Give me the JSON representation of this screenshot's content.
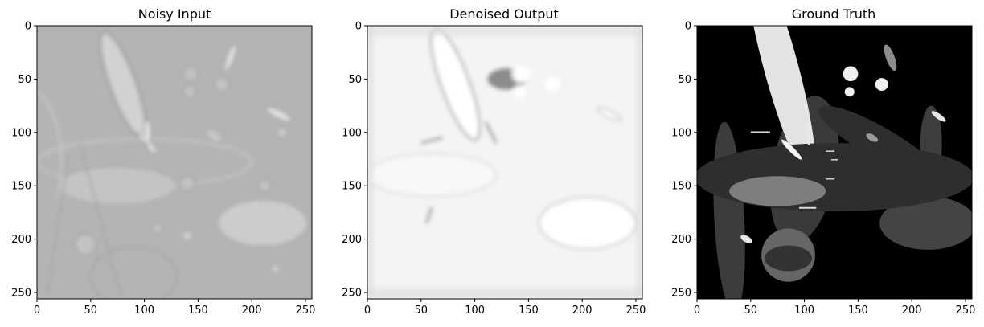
{
  "chart_data": [
    {
      "type": "image",
      "title": "Noisy Input",
      "xlim": [
        0,
        256
      ],
      "ylim": [
        256,
        0
      ],
      "xticks": [
        0,
        50,
        100,
        150,
        200,
        250
      ],
      "yticks": [
        0,
        50,
        100,
        150,
        200,
        250
      ],
      "background": "#b4b4b4"
    },
    {
      "type": "image",
      "title": "Denoised Output",
      "xlim": [
        0,
        256
      ],
      "ylim": [
        256,
        0
      ],
      "xticks": [
        0,
        50,
        100,
        150,
        200,
        250
      ],
      "yticks": [
        0,
        50,
        100,
        150,
        200,
        250
      ],
      "background": "#f4f4f4"
    },
    {
      "type": "image",
      "title": "Ground Truth",
      "xlim": [
        0,
        256
      ],
      "ylim": [
        256,
        0
      ],
      "xticks": [
        0,
        50,
        100,
        150,
        200,
        250
      ],
      "yticks": [
        0,
        50,
        100,
        150,
        200,
        250
      ],
      "background": "#000000"
    }
  ]
}
